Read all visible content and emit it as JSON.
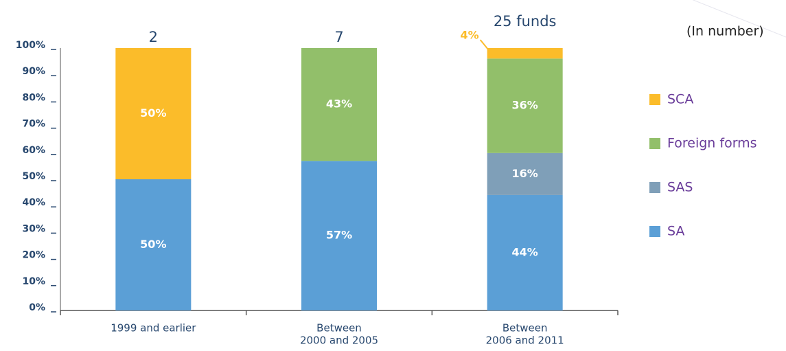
{
  "chart_data": {
    "type": "stacked_bar",
    "subtitle": "(In number)",
    "categories": [
      [
        "1999 and earlier"
      ],
      [
        "Between",
        "2000 and 2005"
      ],
      [
        "Between",
        "2006 and 2011"
      ]
    ],
    "annotations": [
      "2",
      "7",
      "25 funds"
    ],
    "series": [
      {
        "name": "SA",
        "color": "#5b9fd6",
        "values": [
          50,
          57,
          44
        ],
        "value_labels": [
          "50%",
          "57%",
          "44%"
        ]
      },
      {
        "name": "SAS",
        "color": "#7f9fb8",
        "values": [
          null,
          null,
          16
        ],
        "value_labels": [
          null,
          null,
          "16%"
        ]
      },
      {
        "name": "Foreign forms",
        "color": "#92bf6a",
        "values": [
          null,
          43,
          36
        ],
        "value_labels": [
          null,
          "43%",
          "36%"
        ]
      },
      {
        "name": "SCA",
        "color": "#fbbc2a",
        "values": [
          50,
          null,
          4
        ],
        "value_labels": [
          "50%",
          null,
          "4%"
        ]
      }
    ],
    "ylim": [
      0,
      100
    ],
    "yticks": [
      {
        "value": 0,
        "label": "0%"
      },
      {
        "value": 10,
        "label": "10%"
      },
      {
        "value": 20,
        "label": "20%"
      },
      {
        "value": 30,
        "label": "30%"
      },
      {
        "value": 40,
        "label": "40%"
      },
      {
        "value": 50,
        "label": "50%"
      },
      {
        "value": 60,
        "label": "60%"
      },
      {
        "value": 70,
        "label": "70%"
      },
      {
        "value": 80,
        "label": "80%"
      },
      {
        "value": 90,
        "label": "90%"
      },
      {
        "value": 100,
        "label": "100%"
      }
    ],
    "legend": "right"
  }
}
